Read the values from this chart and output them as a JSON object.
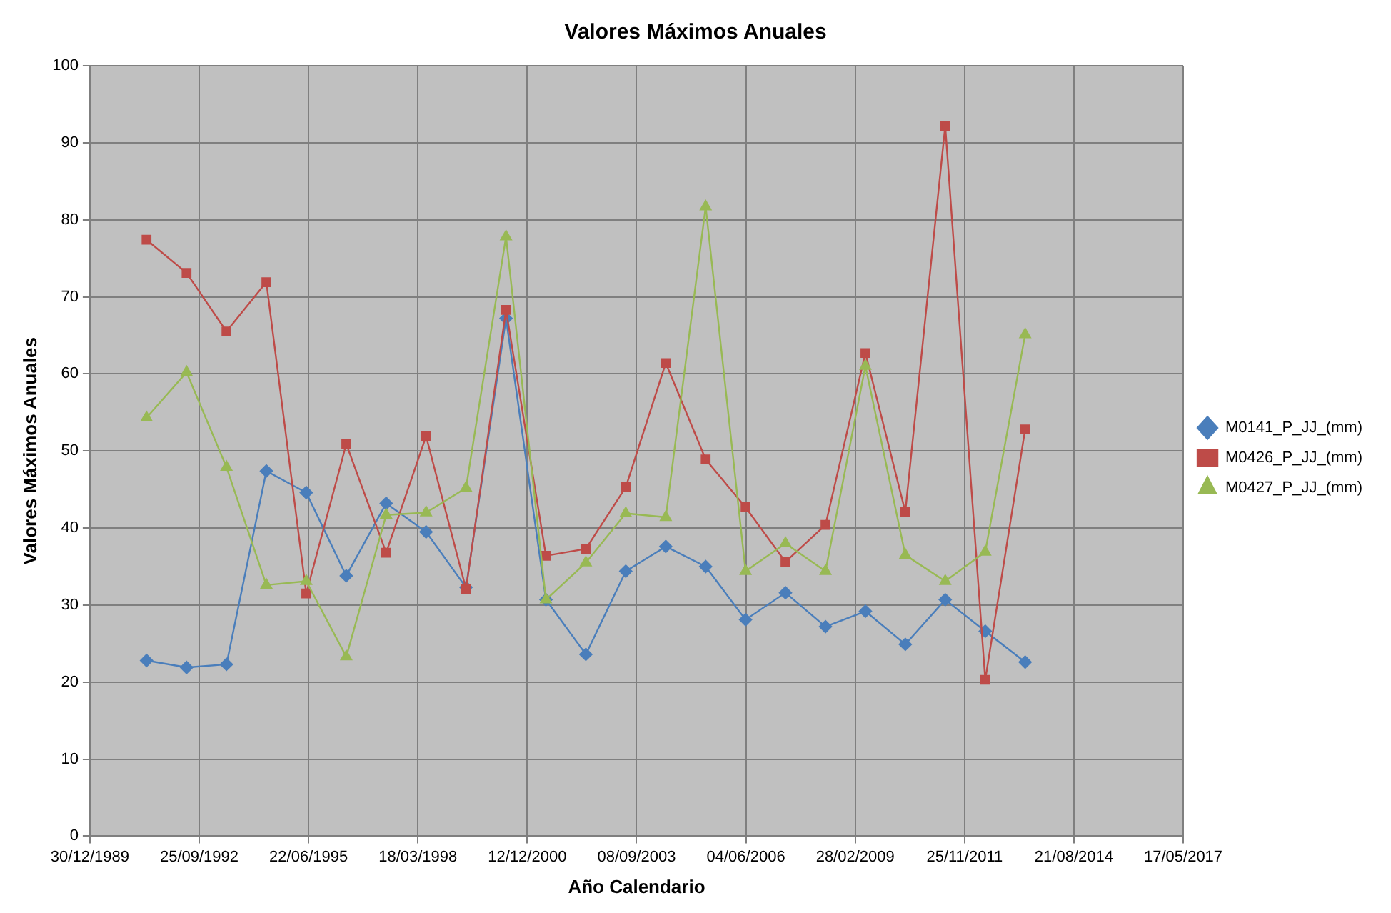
{
  "chart_data": {
    "type": "line",
    "title": "Valores Máximos Anuales",
    "xlabel": "Año Calendario",
    "ylabel": "Valores Máximos Anuales",
    "x": [
      "1991-06-01",
      "1992-06-01",
      "1993-06-01",
      "1994-06-01",
      "1995-06-01",
      "1996-06-01",
      "1997-06-01",
      "1998-06-01",
      "1999-06-01",
      "2000-06-01",
      "2001-06-01",
      "2002-06-01",
      "2003-06-01",
      "2004-06-01",
      "2005-06-01",
      "2006-06-01",
      "2007-06-01",
      "2008-06-01",
      "2009-06-01",
      "2010-06-01",
      "2011-06-01",
      "2012-06-01",
      "2013-06-01"
    ],
    "series": [
      {
        "name": "M0141_P_JJ_(mm)",
        "color": "#4a7ebb",
        "marker": "diamond",
        "values": [
          22.8,
          21.9,
          22.3,
          47.4,
          44.6,
          33.8,
          43.2,
          39.5,
          32.3,
          67.2,
          30.7,
          23.6,
          34.4,
          37.6,
          35.0,
          28.1,
          31.6,
          27.2,
          29.2,
          24.9,
          30.7,
          26.6,
          22.6
        ]
      },
      {
        "name": "M0426_P_JJ_(mm)",
        "color": "#be4b48",
        "marker": "square",
        "values": [
          77.4,
          73.1,
          65.5,
          71.9,
          31.5,
          50.9,
          36.8,
          51.9,
          32.1,
          68.3,
          36.4,
          37.3,
          45.3,
          61.4,
          48.9,
          42.7,
          35.6,
          40.4,
          62.7,
          42.1,
          92.2,
          20.3,
          52.8
        ]
      },
      {
        "name": "M0427_P_JJ_(mm)",
        "color": "#98b954",
        "marker": "triangle",
        "values": [
          54.3,
          60.2,
          47.9,
          32.6,
          33.1,
          23.3,
          41.7,
          42.0,
          45.2,
          77.8,
          30.7,
          35.5,
          41.9,
          41.4,
          81.7,
          34.4,
          38.0,
          34.4,
          61.0,
          36.5,
          33.1,
          36.9,
          65.1
        ]
      }
    ],
    "xlim": [
      "1989-12-30",
      "2017-05-17"
    ],
    "xticks": [
      {
        "value": "1989-12-30",
        "label": "30/12/1989"
      },
      {
        "value": "1992-09-25",
        "label": "25/09/1992"
      },
      {
        "value": "1995-06-22",
        "label": "22/06/1995"
      },
      {
        "value": "1998-03-18",
        "label": "18/03/1998"
      },
      {
        "value": "2000-12-12",
        "label": "12/12/2000"
      },
      {
        "value": "2003-09-08",
        "label": "08/09/2003"
      },
      {
        "value": "2006-06-04",
        "label": "04/06/2006"
      },
      {
        "value": "2009-02-28",
        "label": "28/02/2009"
      },
      {
        "value": "2011-11-25",
        "label": "25/11/2011"
      },
      {
        "value": "2014-08-21",
        "label": "21/08/2014"
      },
      {
        "value": "2017-05-17",
        "label": "17/05/2017"
      }
    ],
    "ylim": [
      0,
      100
    ],
    "yticks": [
      0,
      10,
      20,
      30,
      40,
      50,
      60,
      70,
      80,
      90,
      100
    ],
    "grid": true,
    "legend": "right",
    "line_style": "solid"
  }
}
